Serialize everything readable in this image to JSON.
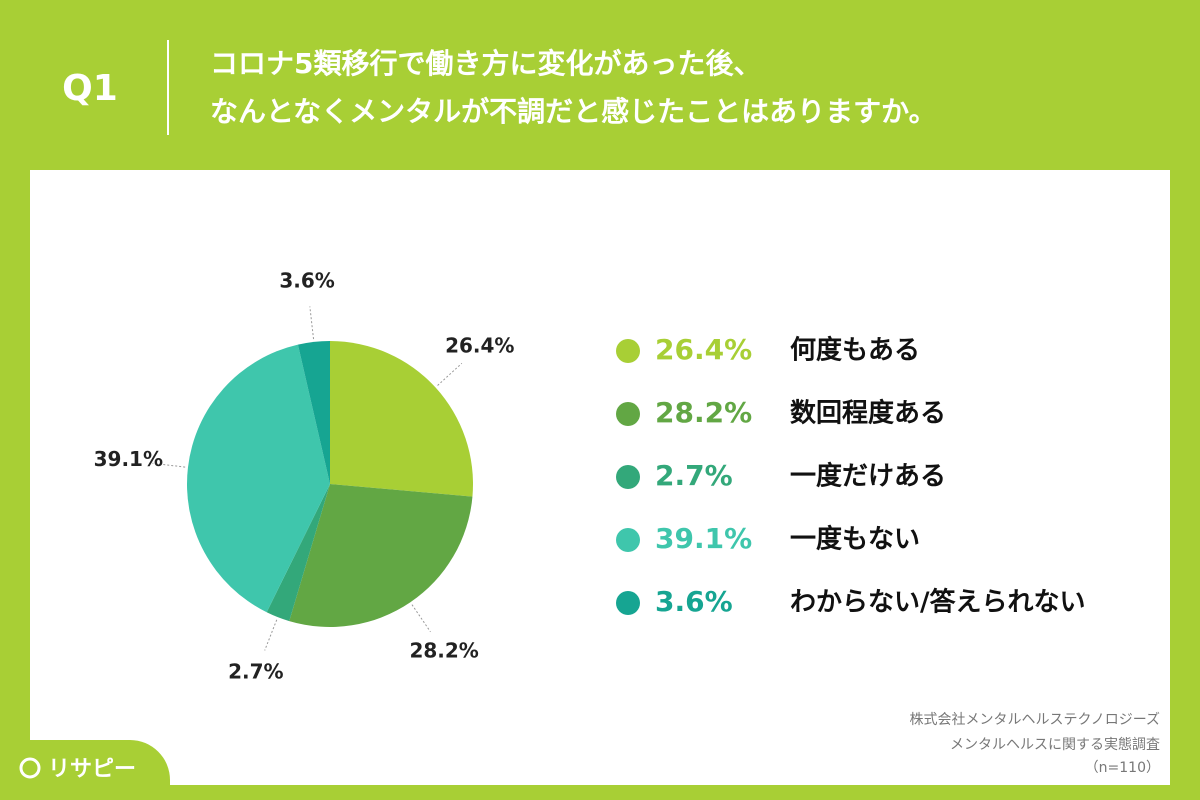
{
  "header": {
    "question": "Q1",
    "title": [
      "コロナ5類移行で働き方に変化があった後、",
      "なんとなくメンタルが不調だと感じたことはありますか。"
    ]
  },
  "chart_data": {
    "type": "pie",
    "categories": [
      "何度もある",
      "数回程度ある",
      "一度だけある",
      "一度もない",
      "わからない/答えられない"
    ],
    "values": [
      26.4,
      28.2,
      2.7,
      39.1,
      3.6
    ],
    "value_labels": [
      "26.4%",
      "28.2%",
      "2.7%",
      "39.1%",
      "3.6%"
    ],
    "colors": [
      "#a8cf35",
      "#62a744",
      "#33a87a",
      "#3fc6ac",
      "#16a592"
    ]
  },
  "footnotes": [
    "株式会社メンタルヘルステクノロジーズ",
    "メンタルヘルスに関する実態調査",
    "（n=110）"
  ],
  "logo": "リサピー"
}
